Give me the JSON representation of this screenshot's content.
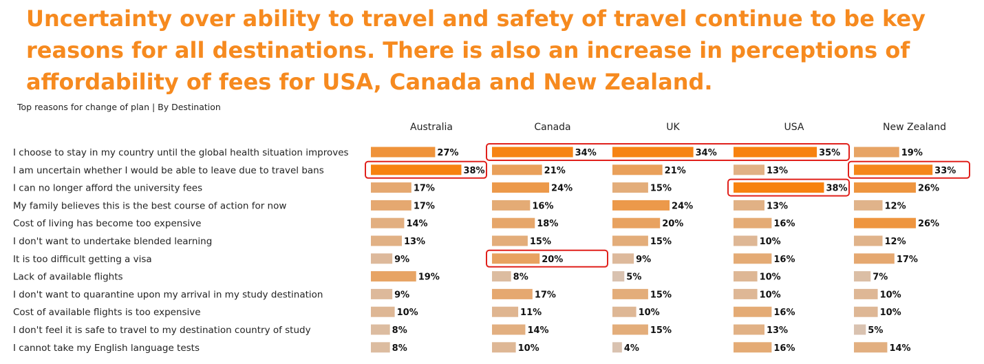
{
  "headline": "Uncertainty over ability to travel and safety of travel continue to be key reasons for all destinations. There is also an increase in perceptions of affordability of fees for USA, Canada and New Zealand.",
  "subtitle": "Top reasons for change of plan | By Destination",
  "colors": {
    "headline": "#f68a1f",
    "highlight_box": "#e0201b",
    "bar_scale_low": "#d9c2b0",
    "bar_scale_high": "#f7820f"
  },
  "chart_data": {
    "type": "bar",
    "orientation": "horizontal",
    "title": "Top reasons for change of plan | By Destination",
    "categories": [
      "I choose to stay in my country until the global health situation improves",
      "I am uncertain whether I would be able to leave due to travel bans",
      "I can no longer afford the university fees",
      "My family believes this is the best course of action for now",
      "Cost of living has become too expensive",
      "I don't want to undertake blended learning",
      "It is too difficult getting a visa",
      "Lack of available flights",
      "I don't want to quarantine upon my arrival in my study destination",
      "Cost of available flights is too expensive",
      "I don't feel it is safe to travel to my destination country of study",
      "I cannot take my English language tests"
    ],
    "series": [
      {
        "name": "Australia",
        "values": [
          27,
          38,
          17,
          17,
          14,
          13,
          9,
          19,
          9,
          10,
          8,
          8
        ]
      },
      {
        "name": "Canada",
        "values": [
          34,
          21,
          24,
          16,
          18,
          15,
          20,
          8,
          17,
          11,
          14,
          10
        ]
      },
      {
        "name": "UK",
        "values": [
          34,
          21,
          15,
          24,
          20,
          15,
          9,
          5,
          15,
          10,
          15,
          4
        ]
      },
      {
        "name": "USA",
        "values": [
          35,
          13,
          38,
          13,
          16,
          10,
          16,
          10,
          10,
          16,
          13,
          16
        ]
      },
      {
        "name": "New Zealand",
        "values": [
          19,
          33,
          26,
          12,
          26,
          12,
          17,
          7,
          10,
          10,
          5,
          14
        ]
      }
    ],
    "value_suffix": "%",
    "highlights": [
      {
        "series": [
          "Canada",
          "UK",
          "USA"
        ],
        "category_index": 0
      },
      {
        "series": [
          "Australia"
        ],
        "category_index": 1
      },
      {
        "series": [
          "New Zealand"
        ],
        "category_index": 1
      },
      {
        "series": [
          "USA"
        ],
        "category_index": 2
      },
      {
        "series": [
          "Canada"
        ],
        "category_index": 6
      }
    ]
  }
}
